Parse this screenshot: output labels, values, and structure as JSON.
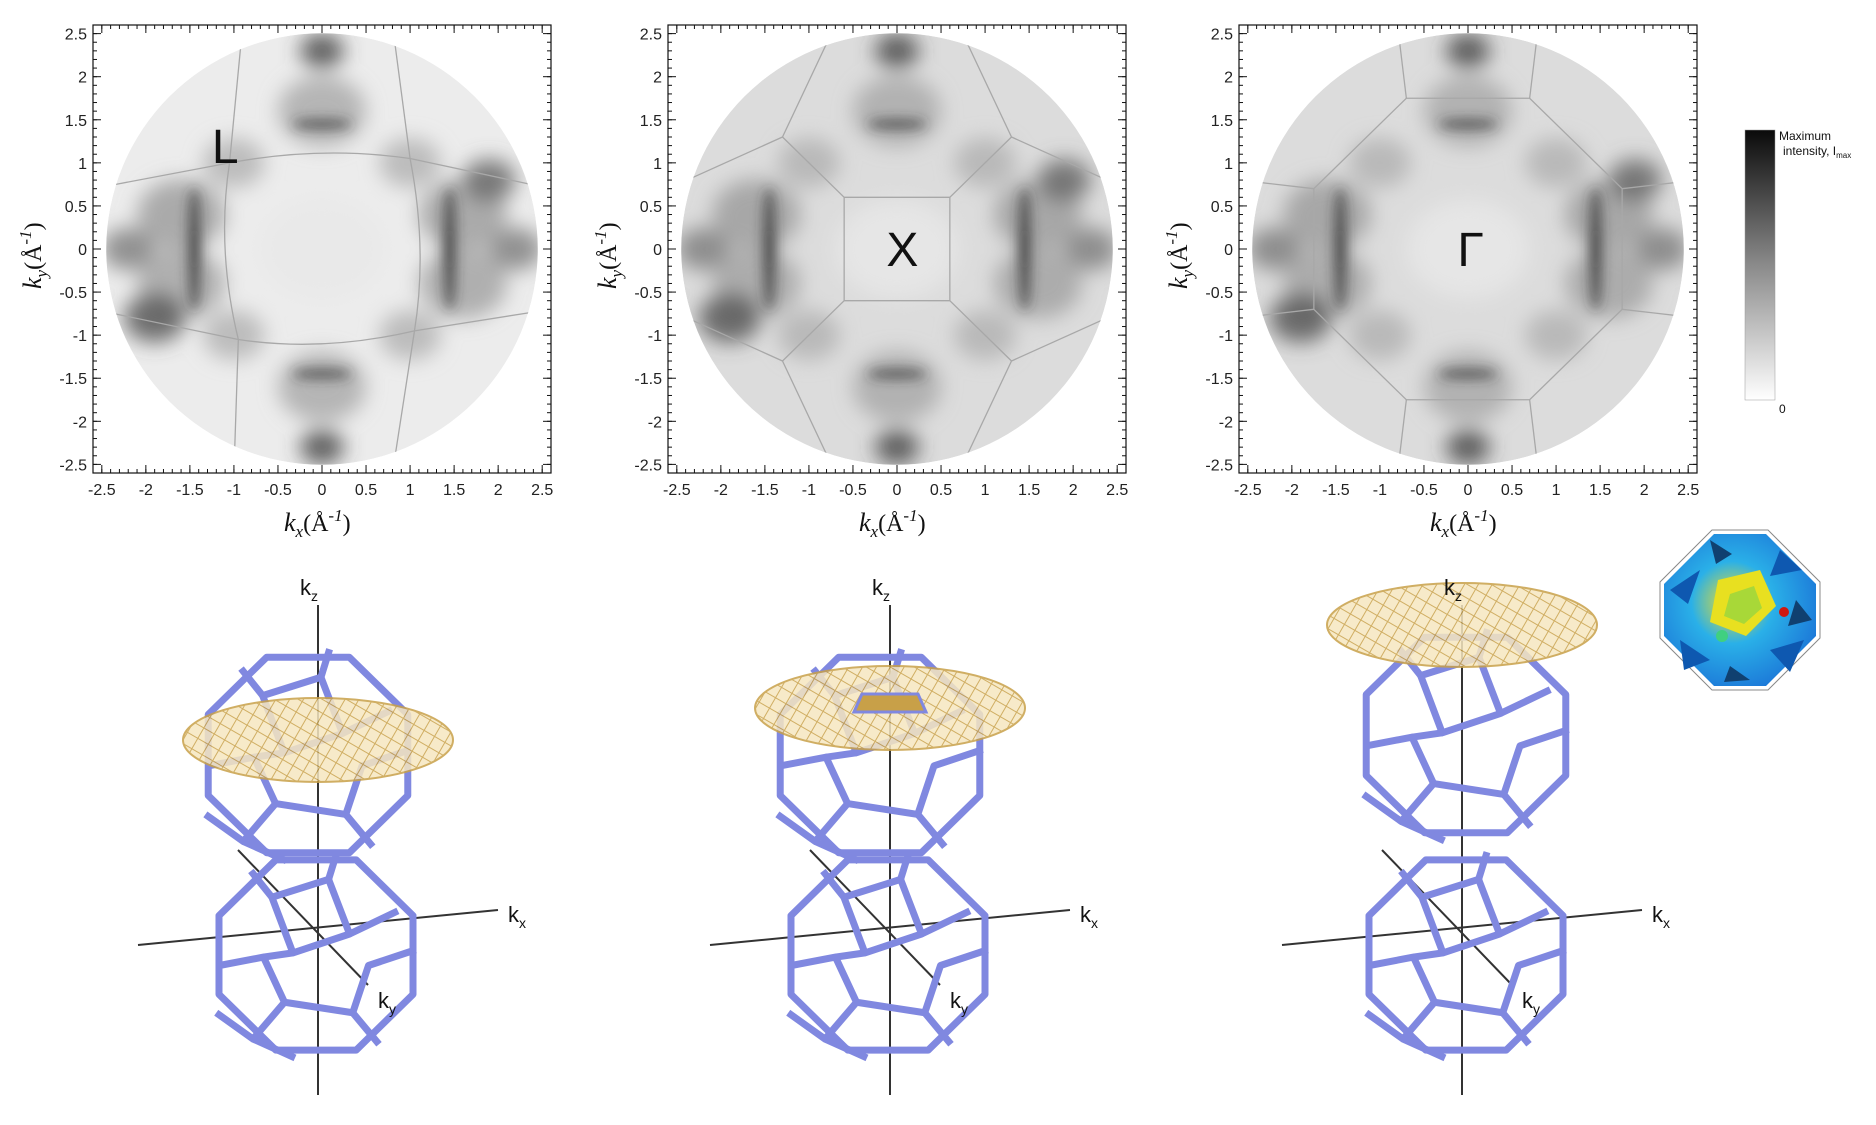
{
  "panels": [
    {
      "symmetry_label": "L"
    },
    {
      "symmetry_label": "X"
    },
    {
      "symmetry_label": "Γ"
    }
  ],
  "axis": {
    "ticks": [
      "-2.5",
      "-2",
      "-1.5",
      "-1",
      "-0.5",
      "0",
      "0.5",
      "1",
      "1.5",
      "2",
      "2.5"
    ],
    "x_label": "k",
    "x_sub": "x",
    "y_label": "k",
    "y_sub": "y",
    "unit_open": "(",
    "unit_base": "Å",
    "unit_exp": "-1",
    "unit_close": ")"
  },
  "colorbar": {
    "max_label_line1": "Maximum",
    "max_label_line2": "intensity, I",
    "max_label_sub": "max",
    "min_label": "0",
    "top_color": "#0a0a0a",
    "bottom_color": "#ffffff"
  },
  "brillouin": {
    "kz": "k",
    "kz_sub": "z",
    "kx": "k",
    "kx_sub": "x",
    "ky": "k",
    "ky_sub": "y",
    "frame_color": "#8088e0",
    "sheet_color": "#c8a048"
  },
  "chart_data": [
    {
      "type": "heatmap",
      "symmetry_label": "L",
      "xlabel": "kx(Å-1)",
      "ylabel": "ky(Å-1)",
      "xlim": [
        -2.6,
        2.6
      ],
      "ylim": [
        -2.6,
        2.6
      ]
    },
    {
      "type": "heatmap",
      "symmetry_label": "X",
      "xlabel": "kx(Å-1)",
      "ylabel": "ky(Å-1)",
      "xlim": [
        -2.6,
        2.6
      ],
      "ylim": [
        -2.6,
        2.6
      ]
    },
    {
      "type": "heatmap",
      "symmetry_label": "Γ",
      "xlabel": "kx(Å-1)",
      "ylabel": "ky(Å-1)",
      "xlim": [
        -2.6,
        2.6
      ],
      "ylim": [
        -2.6,
        2.6
      ]
    }
  ]
}
